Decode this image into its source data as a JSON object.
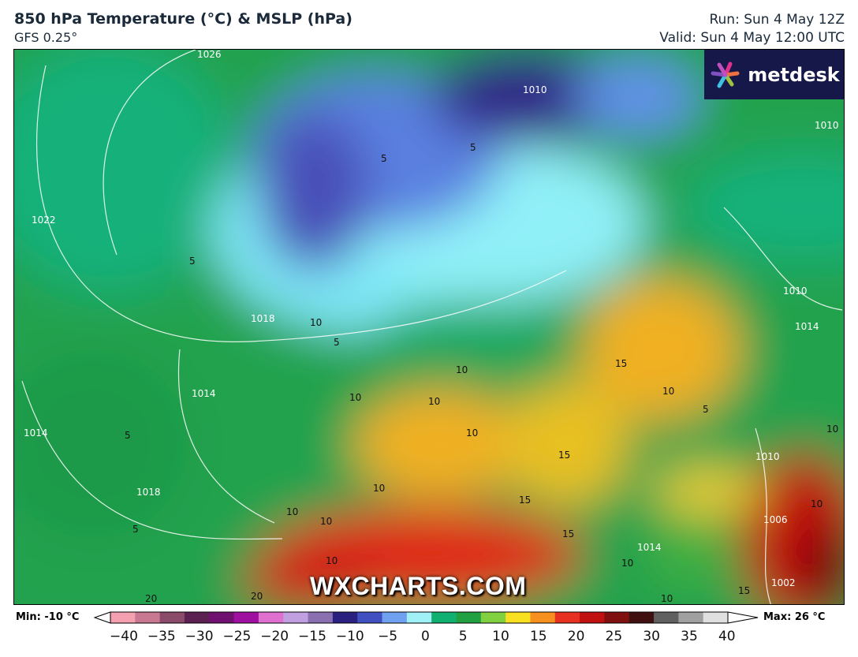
{
  "header": {
    "title": "850 hPa Temperature (°C) & MSLP (hPa)",
    "model": "GFS 0.25°",
    "run": "Run: Sun 4 May 12Z",
    "valid": "Valid: Sun 4 May 12:00 UTC"
  },
  "logo": {
    "text": "metdesk",
    "icon": "flower-logo-icon"
  },
  "watermark": "WXCHARTS.COM",
  "map": {
    "isobar_labels": [
      "1026",
      "1022",
      "1018",
      "1014",
      "1014",
      "1018",
      "1010",
      "1010",
      "1014",
      "1010",
      "1006",
      "1002",
      "1014",
      "1010"
    ],
    "temp_labels": [
      "5",
      "5",
      "5",
      "10",
      "5",
      "10",
      "10",
      "10",
      "10",
      "10",
      "10",
      "15",
      "10",
      "5",
      "10",
      "15",
      "15",
      "15",
      "10",
      "10",
      "20",
      "20",
      "10",
      "10",
      "10",
      "15",
      "5",
      "5"
    ]
  },
  "colorbar": {
    "min_label": "Min: -10 °C",
    "max_label": "Max: 26 °C",
    "ticks": [
      "−40",
      "−35",
      "−30",
      "−25",
      "−20",
      "−15",
      "−10",
      "−5",
      "0",
      "5",
      "10",
      "15",
      "20",
      "25",
      "30",
      "35",
      "40"
    ],
    "colors": [
      "#f4a0b0",
      "#c87890",
      "#8a4a6a",
      "#5a2050",
      "#701070",
      "#a010a0",
      "#e070d0",
      "#c0a0e0",
      "#8a70b0",
      "#2a2080",
      "#4050c0",
      "#70a0f0",
      "#a0f0f8",
      "#10b070",
      "#20a040",
      "#80d040",
      "#f8e020",
      "#f89020",
      "#e83020",
      "#c01010",
      "#801010",
      "#401010",
      "#606060",
      "#a0a0a0",
      "#e0e0e0"
    ]
  }
}
